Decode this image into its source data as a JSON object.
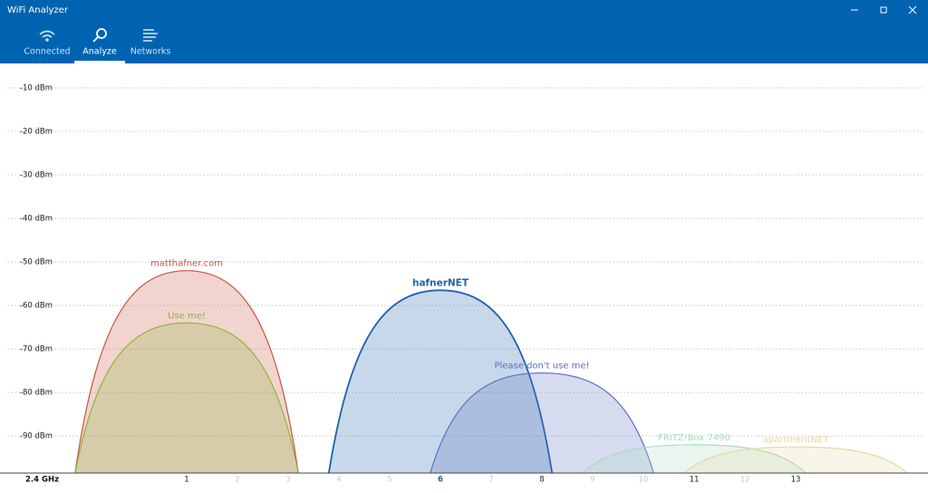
{
  "app": {
    "title": "WiFi Analyzer",
    "tabs": [
      {
        "label": "Connected"
      },
      {
        "label": "Analyze",
        "selected": true
      },
      {
        "label": "Networks"
      }
    ]
  },
  "chart_data": {
    "type": "area",
    "x_label": "2.4 GHz",
    "xlim": [
      -2.5,
      15.4
    ],
    "xticks": [
      1,
      2,
      3,
      4,
      5,
      6,
      7,
      8,
      9,
      10,
      11,
      12,
      13
    ],
    "used_channels": [
      1,
      8,
      11,
      13
    ],
    "selected_channel": 6,
    "ylim": [
      -98.5,
      -5
    ],
    "yticks": [
      {
        "value": -10,
        "label": "-10 dBm"
      },
      {
        "value": -20,
        "label": "-20 dBm"
      },
      {
        "value": -30,
        "label": "-30 dBm"
      },
      {
        "value": -40,
        "label": "-40 dBm"
      },
      {
        "value": -50,
        "label": "-50 dBm"
      },
      {
        "value": -60,
        "label": "-60 dBm"
      },
      {
        "value": -70,
        "label": "-70 dBm"
      },
      {
        "value": -80,
        "label": "-80 dBm"
      },
      {
        "value": -90,
        "label": "-90 dBm"
      }
    ],
    "grid": true,
    "series": [
      {
        "name": "matthafner.com",
        "color": "#c8553d",
        "channel": 1,
        "signal": -52
      },
      {
        "name": "Use me!",
        "color": "#8db33a",
        "channel": 1,
        "signal": -64
      },
      {
        "name": "hafnerNET",
        "color": "#1f62ab",
        "channel": 6,
        "signal": -56.5,
        "selected": true
      },
      {
        "name": "Please don't use me!",
        "color": "#5b70c4",
        "channel": 8,
        "signal": -75.5
      },
      {
        "name": "FRITZ!Box 7490",
        "color": "#a6dcbf",
        "channel": 11,
        "signal": -92
      },
      {
        "name": "apartmentNET",
        "color": "#e6d7a4",
        "channel": 13,
        "signal": -92.5
      }
    ]
  }
}
